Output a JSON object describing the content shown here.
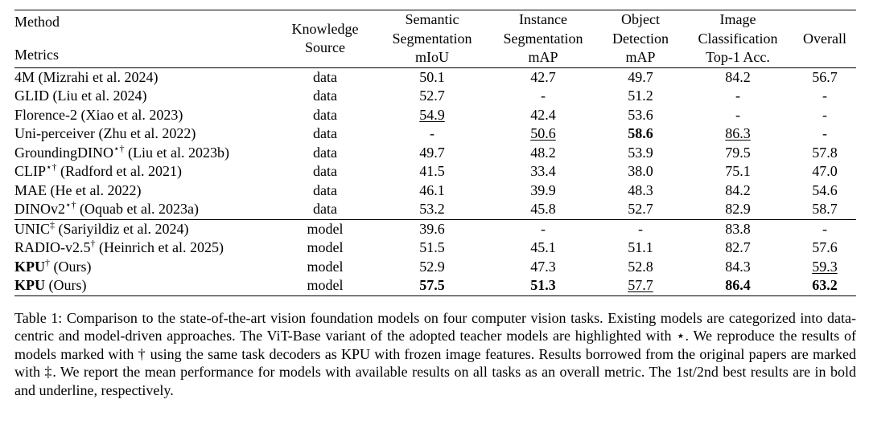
{
  "table": {
    "columns": {
      "method": "Method",
      "metrics": "Metrics",
      "knowledge_source": [
        "Knowledge",
        "Source"
      ],
      "semseg": [
        "Semantic",
        "Segmentation",
        "mIoU"
      ],
      "instseg": [
        "Instance",
        "Segmentation",
        "mAP"
      ],
      "objdet": [
        "Object",
        "Detection",
        "mAP"
      ],
      "imgcls": [
        "Image",
        "Classification",
        "Top-1 Acc."
      ],
      "overall": "Overall"
    },
    "group_data": [
      {
        "name": "4M",
        "sup": "",
        "ref": " (Mizrahi et al. 2024)",
        "bold_name": false,
        "source": "data",
        "cells": [
          {
            "v": "50.1"
          },
          {
            "v": "42.7"
          },
          {
            "v": "49.7"
          },
          {
            "v": "84.2"
          },
          {
            "v": "56.7"
          }
        ]
      },
      {
        "name": "GLID",
        "sup": "",
        "ref": " (Liu et al. 2024)",
        "bold_name": false,
        "source": "data",
        "cells": [
          {
            "v": "52.7"
          },
          {
            "v": "-"
          },
          {
            "v": "51.2"
          },
          {
            "v": "-"
          },
          {
            "v": "-"
          }
        ]
      },
      {
        "name": "Florence-2",
        "sup": "",
        "ref": " (Xiao et al. 2023)",
        "bold_name": false,
        "source": "data",
        "cells": [
          {
            "v": "54.9",
            "u": true
          },
          {
            "v": "42.4"
          },
          {
            "v": "53.6"
          },
          {
            "v": "-"
          },
          {
            "v": "-"
          }
        ]
      },
      {
        "name": "Uni-perceiver",
        "sup": "",
        "ref": " (Zhu et al. 2022)",
        "bold_name": false,
        "source": "data",
        "cells": [
          {
            "v": "-"
          },
          {
            "v": "50.6",
            "u": true
          },
          {
            "v": "58.6",
            "b": true
          },
          {
            "v": "86.3",
            "u": true
          },
          {
            "v": "-"
          }
        ]
      },
      {
        "name": "GroundingDINO",
        "sup": "⋆†",
        "ref": " (Liu et al. 2023b)",
        "bold_name": false,
        "source": "data",
        "cells": [
          {
            "v": "49.7"
          },
          {
            "v": "48.2"
          },
          {
            "v": "53.9"
          },
          {
            "v": "79.5"
          },
          {
            "v": "57.8"
          }
        ]
      },
      {
        "name": "CLIP",
        "sup": "⋆†",
        "ref": " (Radford et al. 2021)",
        "bold_name": false,
        "source": "data",
        "cells": [
          {
            "v": "41.5"
          },
          {
            "v": "33.4"
          },
          {
            "v": "38.0"
          },
          {
            "v": "75.1"
          },
          {
            "v": "47.0"
          }
        ]
      },
      {
        "name": "MAE",
        "sup": "",
        "ref": " (He et al. 2022)",
        "bold_name": false,
        "source": "data",
        "cells": [
          {
            "v": "46.1"
          },
          {
            "v": "39.9"
          },
          {
            "v": "48.3"
          },
          {
            "v": "84.2"
          },
          {
            "v": "54.6"
          }
        ]
      },
      {
        "name": "DINOv2",
        "sup": "⋆†",
        "ref": " (Oquab et al. 2023a)",
        "bold_name": false,
        "source": "data",
        "cells": [
          {
            "v": "53.2"
          },
          {
            "v": "45.8"
          },
          {
            "v": "52.7"
          },
          {
            "v": "82.9"
          },
          {
            "v": "58.7"
          }
        ]
      }
    ],
    "group_model": [
      {
        "name": "UNIC",
        "sup": "‡",
        "ref": " (Sariyildiz et al. 2024)",
        "bold_name": false,
        "source": "model",
        "cells": [
          {
            "v": "39.6"
          },
          {
            "v": "-"
          },
          {
            "v": "-"
          },
          {
            "v": "83.8"
          },
          {
            "v": "-"
          }
        ]
      },
      {
        "name": "RADIO-v2.5",
        "sup": "†",
        "ref": " (Heinrich et al. 2025)",
        "bold_name": false,
        "source": "model",
        "cells": [
          {
            "v": "51.5"
          },
          {
            "v": "45.1"
          },
          {
            "v": "51.1"
          },
          {
            "v": "82.7"
          },
          {
            "v": "57.6"
          }
        ]
      },
      {
        "name": "KPU",
        "sup": "†",
        "ref": " (Ours)",
        "bold_name": true,
        "source": "model",
        "cells": [
          {
            "v": "52.9"
          },
          {
            "v": "47.3"
          },
          {
            "v": "52.8"
          },
          {
            "v": "84.3"
          },
          {
            "v": "59.3",
            "u": true
          }
        ]
      },
      {
        "name": "KPU",
        "sup": "",
        "ref": " (Ours)",
        "bold_name": true,
        "source": "model",
        "cells": [
          {
            "v": "57.5",
            "b": true
          },
          {
            "v": "51.3",
            "b": true
          },
          {
            "v": "57.7",
            "u": true
          },
          {
            "v": "86.4",
            "b": true
          },
          {
            "v": "63.2",
            "b": true
          }
        ]
      }
    ]
  },
  "caption": {
    "p1": "Table 1: Comparison to the state-of-the-art vision foundation models on four computer vision tasks. Existing models are categorized into data-centric and model-driven approaches. The ViT-Base variant of the adopted teacher models are highlighted with ",
    "star": "⋆",
    "p2": ". We reproduce the results of models marked with ",
    "dagger": "†",
    "p3": " using the same task decoders as KPU with frozen image features. Results borrowed from the original papers are marked with ",
    "ddagger": "‡",
    "p4": ". We report the mean performance for models with available results on all tasks as an overall metric. The 1st/2nd best results are in bold and underline, respectively."
  }
}
